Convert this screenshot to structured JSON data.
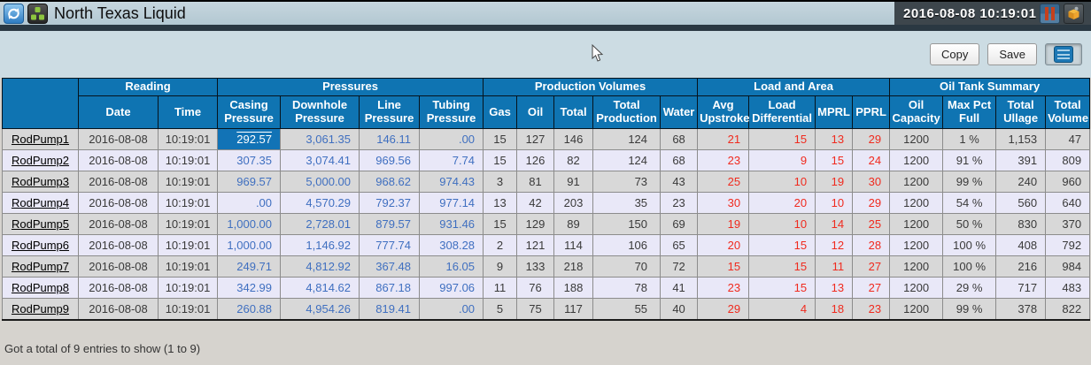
{
  "titlebar": {
    "title": "North Texas Liquid",
    "timestamp": "2016-08-08 10:19:01",
    "left_icons": [
      "refresh-icon",
      "well-group-icon"
    ],
    "right_icons": [
      "bar-chart-icon",
      "package-icon"
    ]
  },
  "toolbar": {
    "copy_label": "Copy",
    "save_label": "Save",
    "view_icon": "table-view-icon"
  },
  "colors": {
    "header_blue": "#0f74b2",
    "value_blue": "#3f6fc0",
    "alarm_red": "#f02a1e",
    "row_gray": "#d8d8d8",
    "row_lavender": "#e9e8f8",
    "selected_blue": "#1273b6"
  },
  "table": {
    "groups": [
      {
        "label": "Reading",
        "span": 2
      },
      {
        "label": "Pressures",
        "span": 4
      },
      {
        "label": "Production Volumes",
        "span": 5
      },
      {
        "label": "Load and Area",
        "span": 4
      },
      {
        "label": "Oil Tank Summary",
        "span": 4
      }
    ],
    "columns": [
      {
        "key": "name",
        "label": "",
        "width": 86,
        "cls": "center name"
      },
      {
        "key": "date",
        "label": "Date",
        "width": 90,
        "cls": "center dark"
      },
      {
        "key": "time",
        "label": "Time",
        "width": 67,
        "cls": "center dark"
      },
      {
        "key": "casing",
        "label": "Casing Pressure",
        "width": 71,
        "cls": "right blue"
      },
      {
        "key": "downhole",
        "label": "Downhole Pressure",
        "width": 89,
        "cls": "right blue"
      },
      {
        "key": "line",
        "label": "Line Pressure",
        "width": 68,
        "cls": "right blue"
      },
      {
        "key": "tubing",
        "label": "Tubing Pressure",
        "width": 72,
        "cls": "right blue"
      },
      {
        "key": "gas",
        "label": "Gas",
        "width": 38,
        "cls": "center dark"
      },
      {
        "key": "oil",
        "label": "Oil",
        "width": 42,
        "cls": "center dark"
      },
      {
        "key": "total",
        "label": "Total",
        "width": 44,
        "cls": "center dark"
      },
      {
        "key": "total_production",
        "label": "Total Production",
        "width": 76,
        "cls": "right pad14 dark"
      },
      {
        "key": "water",
        "label": "Water",
        "width": 42,
        "cls": "center dark"
      },
      {
        "key": "avg_upstroke",
        "label": "Avg Upstroke",
        "width": 58,
        "cls": "right red"
      },
      {
        "key": "load_differential",
        "label": "Load Differential",
        "width": 75,
        "cls": "right red"
      },
      {
        "key": "mprl",
        "label": "MPRL",
        "width": 42,
        "cls": "right red"
      },
      {
        "key": "pprl",
        "label": "PPRL",
        "width": 42,
        "cls": "right red"
      },
      {
        "key": "oil_capacity",
        "label": "Oil Capacity",
        "width": 60,
        "cls": "center dark"
      },
      {
        "key": "max_pct_full",
        "label": "Max Pct Full",
        "width": 60,
        "cls": "center dark"
      },
      {
        "key": "total_ullage",
        "label": "Total Ullage",
        "width": 56,
        "cls": "right dark"
      },
      {
        "key": "total_volume",
        "label": "Total Volume",
        "width": 50,
        "cls": "right dark"
      }
    ],
    "rows": [
      {
        "name": "RodPump1",
        "date": "2016-08-08",
        "time": "10:19:01",
        "casing": "292.57",
        "downhole": "3,061.35",
        "line": "146.11",
        "tubing": ".00",
        "gas": "15",
        "oil": "127",
        "total": "146",
        "total_production": "124",
        "water": "68",
        "avg_upstroke": "21",
        "load_differential": "15",
        "mprl": "13",
        "pprl": "29",
        "oil_capacity": "1200",
        "max_pct_full": "1 %",
        "total_ullage": "1,153",
        "total_volume": "47",
        "selected_cell": "casing"
      },
      {
        "name": "RodPump2",
        "date": "2016-08-08",
        "time": "10:19:01",
        "casing": "307.35",
        "downhole": "3,074.41",
        "line": "969.56",
        "tubing": "7.74",
        "gas": "15",
        "oil": "126",
        "total": "82",
        "total_production": "124",
        "water": "68",
        "avg_upstroke": "23",
        "load_differential": "9",
        "mprl": "15",
        "pprl": "24",
        "oil_capacity": "1200",
        "max_pct_full": "91 %",
        "total_ullage": "391",
        "total_volume": "809"
      },
      {
        "name": "RodPump3",
        "date": "2016-08-08",
        "time": "10:19:01",
        "casing": "969.57",
        "downhole": "5,000.00",
        "line": "968.62",
        "tubing": "974.43",
        "gas": "3",
        "oil": "81",
        "total": "91",
        "total_production": "73",
        "water": "43",
        "avg_upstroke": "25",
        "load_differential": "10",
        "mprl": "19",
        "pprl": "30",
        "oil_capacity": "1200",
        "max_pct_full": "99 %",
        "total_ullage": "240",
        "total_volume": "960"
      },
      {
        "name": "RodPump4",
        "date": "2016-08-08",
        "time": "10:19:01",
        "casing": ".00",
        "downhole": "4,570.29",
        "line": "792.37",
        "tubing": "977.14",
        "gas": "13",
        "oil": "42",
        "total": "203",
        "total_production": "35",
        "water": "23",
        "avg_upstroke": "30",
        "load_differential": "20",
        "mprl": "10",
        "pprl": "29",
        "oil_capacity": "1200",
        "max_pct_full": "54 %",
        "total_ullage": "560",
        "total_volume": "640"
      },
      {
        "name": "RodPump5",
        "date": "2016-08-08",
        "time": "10:19:01",
        "casing": "1,000.00",
        "downhole": "2,728.01",
        "line": "879.57",
        "tubing": "931.46",
        "gas": "15",
        "oil": "129",
        "total": "89",
        "total_production": "150",
        "water": "69",
        "avg_upstroke": "19",
        "load_differential": "10",
        "mprl": "14",
        "pprl": "25",
        "oil_capacity": "1200",
        "max_pct_full": "50 %",
        "total_ullage": "830",
        "total_volume": "370"
      },
      {
        "name": "RodPump6",
        "date": "2016-08-08",
        "time": "10:19:01",
        "casing": "1,000.00",
        "downhole": "1,146.92",
        "line": "777.74",
        "tubing": "308.28",
        "gas": "2",
        "oil": "121",
        "total": "114",
        "total_production": "106",
        "water": "65",
        "avg_upstroke": "20",
        "load_differential": "15",
        "mprl": "12",
        "pprl": "28",
        "oil_capacity": "1200",
        "max_pct_full": "100 %",
        "total_ullage": "408",
        "total_volume": "792"
      },
      {
        "name": "RodPump7",
        "date": "2016-08-08",
        "time": "10:19:01",
        "casing": "249.71",
        "downhole": "4,812.92",
        "line": "367.48",
        "tubing": "16.05",
        "gas": "9",
        "oil": "133",
        "total": "218",
        "total_production": "70",
        "water": "72",
        "avg_upstroke": "15",
        "load_differential": "15",
        "mprl": "11",
        "pprl": "27",
        "oil_capacity": "1200",
        "max_pct_full": "100 %",
        "total_ullage": "216",
        "total_volume": "984"
      },
      {
        "name": "RodPump8",
        "date": "2016-08-08",
        "time": "10:19:01",
        "casing": "342.99",
        "downhole": "4,814.62",
        "line": "867.18",
        "tubing": "997.06",
        "gas": "11",
        "oil": "76",
        "total": "188",
        "total_production": "78",
        "water": "41",
        "avg_upstroke": "23",
        "load_differential": "15",
        "mprl": "13",
        "pprl": "27",
        "oil_capacity": "1200",
        "max_pct_full": "29 %",
        "total_ullage": "717",
        "total_volume": "483"
      },
      {
        "name": "RodPump9",
        "date": "2016-08-08",
        "time": "10:19:01",
        "casing": "260.88",
        "downhole": "4,954.26",
        "line": "819.41",
        "tubing": ".00",
        "gas": "5",
        "oil": "75",
        "total": "117",
        "total_production": "55",
        "water": "40",
        "avg_upstroke": "29",
        "load_differential": "4",
        "mprl": "18",
        "pprl": "23",
        "oil_capacity": "1200",
        "max_pct_full": "99 %",
        "total_ullage": "378",
        "total_volume": "822"
      }
    ]
  },
  "footer": {
    "status": "Got a total of 9 entries to show (1 to 9)"
  }
}
